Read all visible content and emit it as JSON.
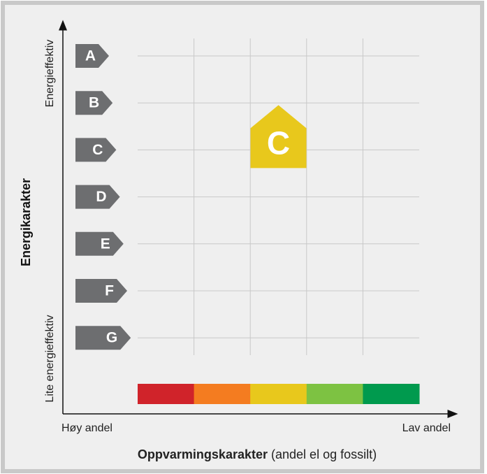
{
  "y_axis": {
    "title": "Energikarakter",
    "top_label": "Energieffektiv",
    "bottom_label": "Lite energieffektiv"
  },
  "x_axis": {
    "title": "Oppvarmingskarakter",
    "title_note": "(andel el og fossilt)",
    "left_label": "Høy andel",
    "right_label": "Lav andel"
  },
  "energy_grades": [
    "A",
    "B",
    "C",
    "D",
    "E",
    "F",
    "G"
  ],
  "grade_color": "#6d6e70",
  "heating_colors": [
    "#d0232a",
    "#f47c20",
    "#e8c81c",
    "#7dc242",
    "#009a4e"
  ],
  "marker": {
    "label": "C",
    "color": "#e8c81c"
  }
}
